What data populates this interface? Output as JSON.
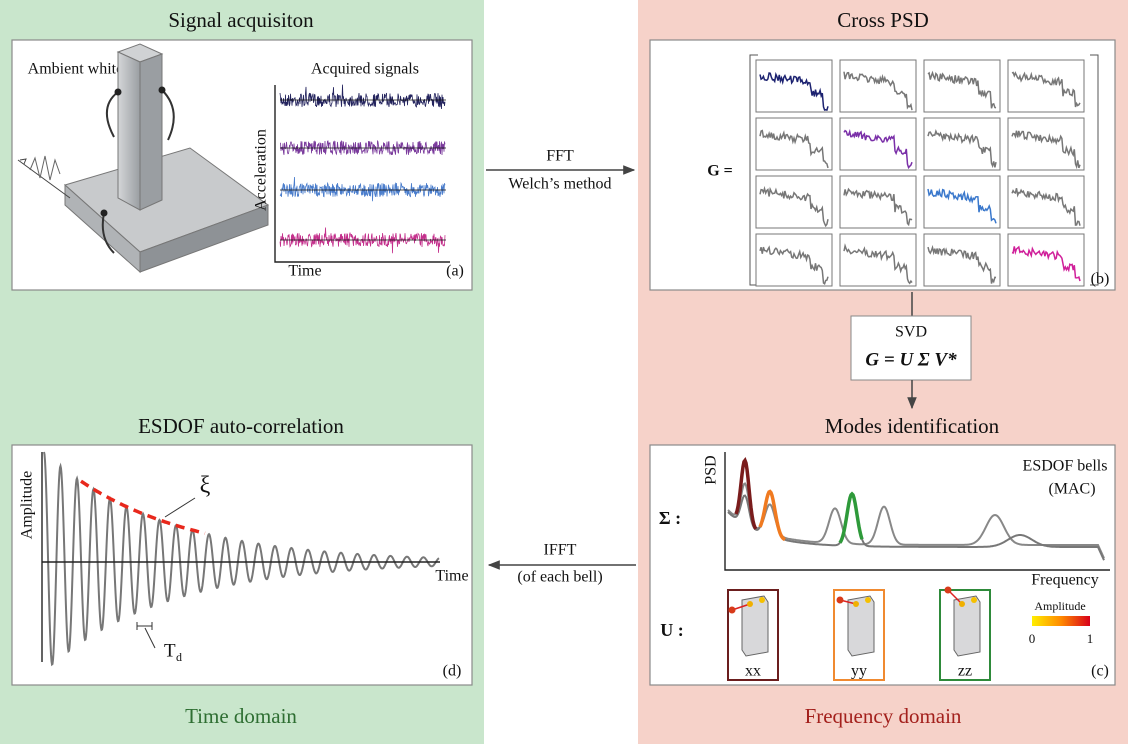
{
  "signal_acquisition": {
    "title": "Signal acquisiton",
    "excitation_label": "Ambient white-noise",
    "signals_label": "Acquired signals",
    "y_axis": "Acceleration",
    "x_axis": "Time",
    "tag": "(a)"
  },
  "fft_arrow": {
    "line1": "FFT",
    "line2": "Welch’s method"
  },
  "cross_psd": {
    "title": "Cross PSD",
    "matrix_label": "G =",
    "tag": "(b)"
  },
  "svd": {
    "label": "SVD",
    "formula": "G = U Σ V*"
  },
  "modes": {
    "title": "Modes identification",
    "y_axis": "PSD",
    "bells": [
      "ESDOF bells",
      "(MAC)"
    ],
    "sigma_label": "Σ :",
    "x_axis": "Frequency",
    "u_label": "U :",
    "colorbar": {
      "title": "Amplitude",
      "min": 0,
      "max": 1
    },
    "mode_names": [
      "xx",
      "yy",
      "zz"
    ],
    "tag": "(c)"
  },
  "ifft_arrow": {
    "line1": "IFFT",
    "line2": "(of each bell)"
  },
  "autocorrelation": {
    "title": "ESDOF auto-correlation",
    "y_axis": "Amplitude",
    "x_axis": "Time",
    "damping": "ξ",
    "period_main": "T",
    "period_sub": "d",
    "tag": "(d)"
  },
  "footer": {
    "left": "Time domain",
    "right": "Frequency domain"
  }
}
